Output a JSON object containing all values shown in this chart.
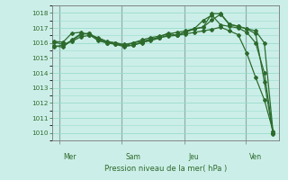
{
  "bg_color": "#cceee8",
  "grid_color": "#99ddcc",
  "line_color": "#2d6b2d",
  "xlabel": "Pression niveau de la mer( hPa )",
  "ylim": [
    1009.5,
    1018.5
  ],
  "yticks": [
    1010,
    1011,
    1012,
    1013,
    1014,
    1015,
    1016,
    1017,
    1018
  ],
  "day_labels": [
    "Mer",
    "Sam",
    "Jeu",
    "Ven"
  ],
  "vlines": [
    0.2,
    2.7,
    5.2,
    7.65
  ],
  "xlim": [
    -0.1,
    9.0
  ],
  "series": [
    {
      "x": [
        0.0,
        0.35,
        0.7,
        1.05,
        1.4,
        1.75,
        2.1,
        2.45,
        2.8,
        3.15,
        3.5,
        3.85,
        4.2,
        4.55,
        4.9,
        5.25,
        5.6,
        5.95,
        6.3,
        6.65,
        7.0,
        7.35,
        7.7,
        8.05,
        8.4,
        8.75
      ],
      "y": [
        1015.75,
        1015.85,
        1016.15,
        1016.55,
        1016.65,
        1016.2,
        1016.0,
        1015.95,
        1015.8,
        1016.0,
        1016.1,
        1016.25,
        1016.35,
        1016.45,
        1016.5,
        1016.6,
        1016.7,
        1016.8,
        1016.9,
        1017.05,
        1016.8,
        1016.55,
        1015.3,
        1013.7,
        1012.2,
        1010.1
      ]
    },
    {
      "x": [
        0.0,
        0.35,
        0.7,
        1.05,
        1.4,
        1.75,
        2.1,
        2.45,
        2.8,
        3.15,
        3.5,
        3.85,
        4.2,
        4.55,
        4.9,
        5.25,
        5.6,
        5.95,
        6.3,
        6.65,
        7.0,
        7.35,
        7.7,
        8.05,
        8.4,
        8.75
      ],
      "y": [
        1016.05,
        1015.9,
        1016.1,
        1016.4,
        1016.5,
        1016.35,
        1016.1,
        1016.0,
        1015.9,
        1016.0,
        1016.2,
        1016.35,
        1016.45,
        1016.6,
        1016.7,
        1016.8,
        1016.95,
        1017.5,
        1017.85,
        1017.2,
        1017.1,
        1017.0,
        1016.7,
        1016.0,
        1014.0,
        1010.0
      ]
    },
    {
      "x": [
        0.0,
        0.35,
        0.7,
        1.05,
        1.4,
        1.75,
        2.1,
        2.45,
        2.8,
        3.15,
        3.5,
        3.85,
        4.2,
        4.55,
        4.9,
        5.25,
        5.6,
        5.95,
        6.3,
        6.65,
        7.0,
        7.35,
        7.7,
        8.05,
        8.4,
        8.75
      ],
      "y": [
        1016.1,
        1016.05,
        1016.65,
        1016.7,
        1016.55,
        1016.15,
        1016.0,
        1015.9,
        1015.75,
        1015.85,
        1016.0,
        1016.2,
        1016.4,
        1016.65,
        1016.5,
        1016.75,
        1016.95,
        1017.05,
        1017.95,
        1017.95,
        1017.25,
        1017.1,
        1016.95,
        1016.8,
        1016.0,
        1010.0
      ]
    },
    {
      "x": [
        0.0,
        0.35,
        0.7,
        1.05,
        1.4,
        1.75,
        2.1,
        2.45,
        2.8,
        3.15,
        3.5,
        3.85,
        4.2,
        4.55,
        4.9,
        5.25,
        5.6,
        5.95,
        6.3,
        6.65,
        7.0,
        7.35,
        7.7,
        8.05,
        8.4,
        8.75
      ],
      "y": [
        1015.8,
        1015.72,
        1016.2,
        1016.6,
        1016.62,
        1016.3,
        1016.05,
        1016.0,
        1015.82,
        1015.85,
        1016.05,
        1016.15,
        1016.32,
        1016.52,
        1016.52,
        1016.72,
        1016.92,
        1017.05,
        1017.52,
        1017.92,
        1017.22,
        1017.12,
        1016.92,
        1016.62,
        1013.4,
        1009.9
      ]
    }
  ]
}
